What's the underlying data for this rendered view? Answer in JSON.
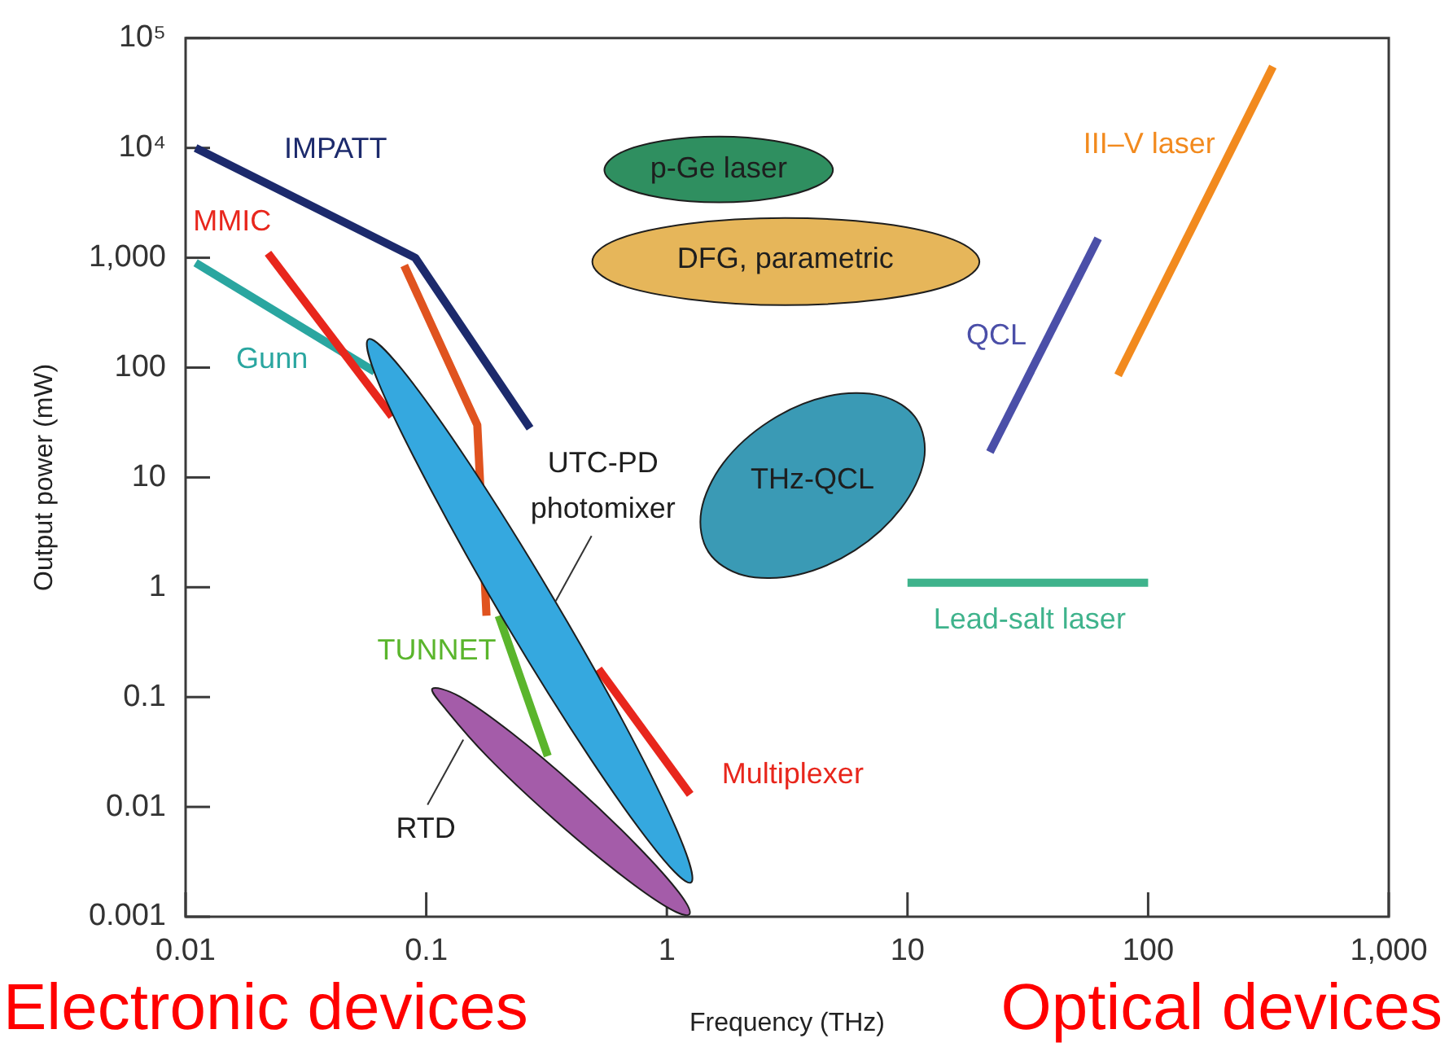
{
  "chart_data": {
    "type": "line",
    "xlabel": "Frequency (THz)",
    "ylabel": "Output power (mW)",
    "log": "xy",
    "xlim": [
      0.01,
      1000
    ],
    "ylim": [
      0.001,
      100000
    ],
    "xticks": [
      0.01,
      0.1,
      1,
      10,
      100,
      {
        "value": 1000,
        "label": "1,000"
      }
    ],
    "yticks": [
      0.001,
      0.01,
      0.1,
      1,
      10,
      100,
      {
        "value": 1000,
        "label": "1,000"
      },
      {
        "value": 10000,
        "label": "10⁴"
      },
      {
        "value": 100000,
        "label": "10⁵"
      }
    ],
    "annotations": [
      "Electronic devices",
      "Optical devices"
    ],
    "series": [
      {
        "name": "IMPATT",
        "color": "#1c2a6c",
        "x": [
          0.011,
          0.09,
          0.27
        ],
        "values": [
          10000,
          1000,
          28
        ]
      },
      {
        "name": "MMIC",
        "color": "#e8261c",
        "x": [
          0.022,
          0.072
        ],
        "values": [
          1100,
          36
        ]
      },
      {
        "name": "Gunn",
        "color": "#2aa6a0",
        "x": [
          0.011,
          0.061
        ],
        "values": [
          900,
          92
        ]
      },
      {
        "color": "#e0531f",
        "x": [
          0.081,
          0.163,
          0.178
        ],
        "values": [
          850,
          30,
          0.55
        ]
      },
      {
        "name": "TUNNET",
        "color": "#5ab52c",
        "x": [
          0.2,
          0.32
        ],
        "values": [
          0.55,
          0.029
        ]
      },
      {
        "name": "Multiplexer",
        "color": "#e8261c",
        "x": [
          0.52,
          1.25
        ],
        "values": [
          0.18,
          0.013
        ]
      },
      {
        "name": "QCL",
        "color": "#4b4fa8",
        "x": [
          22,
          62
        ],
        "values": [
          17,
          1500
        ]
      },
      {
        "name": "III–V laser",
        "color": "#f28a1e",
        "x": [
          75,
          330
        ],
        "values": [
          85,
          55000
        ]
      },
      {
        "name": "Lead-salt laser",
        "color": "#3fb38c",
        "x": [
          10,
          100
        ],
        "values": [
          1.1,
          1.1
        ]
      },
      {
        "name": "p-Ge laser",
        "type": "area",
        "color": "#2f8f60",
        "x": [
          4.9,
          4.2,
          2.8,
          1.65,
          0.96,
          0.64,
          0.55,
          0.64,
          0.96,
          1.65,
          2.8,
          4.2
        ],
        "values": [
          6300,
          4500,
          3500,
          3200,
          3500,
          4500,
          6300,
          9000,
          11600,
          12700,
          11600,
          9000
        ]
      },
      {
        "name": "DFG, parametric",
        "type": "area",
        "color": "#e6b65a",
        "x": [
          19.9,
          15.5,
          7.9,
          3.1,
          1.23,
          0.62,
          0.49,
          0.62,
          1.23,
          3.1,
          7.9,
          15.5
        ],
        "values": [
          920,
          580,
          420,
          370,
          420,
          580,
          920,
          1460,
          2040,
          2300,
          2040,
          1460
        ]
      },
      {
        "name": "THz-QCL",
        "type": "area",
        "color": "#3a9ab5",
        "x": [
          10.9,
          11.7,
          9.4,
          6.05,
          3.5,
          2.09,
          1.49,
          1.39,
          1.72,
          2.68,
          4.65,
          7.76
        ],
        "values": [
          34,
          14.3,
          5.23,
          2.17,
          1.3,
          1.28,
          2.09,
          4.96,
          13.6,
          32.7,
          54.7,
          55.4
        ]
      },
      {
        "name": "UTC-PD photomixer",
        "type": "area",
        "color": "#35a8df",
        "x": [
          1.26,
          0.92,
          0.48,
          0.215,
          0.103,
          0.0633,
          0.0575,
          0.079,
          0.151,
          0.336,
          0.705,
          1.14
        ],
        "values": [
          0.00205,
          0.0038,
          0.0277,
          0.46,
          8.2,
          73,
          181,
          97.1,
          13.4,
          0.81,
          0.0451,
          0.0051
        ]
      },
      {
        "name": "RTD",
        "type": "area",
        "color": "#a45ca9",
        "x": [
          1.24,
          0.99,
          0.61,
          0.327,
          0.181,
          0.122,
          0.106,
          0.138,
          0.226,
          0.42,
          0.755,
          1.12
        ],
        "values": [
          0.00105,
          0.00124,
          0.00264,
          0.0083,
          0.0282,
          0.075,
          0.119,
          0.101,
          0.0473,
          0.0151,
          0.0044,
          0.00167
        ]
      }
    ]
  }
}
